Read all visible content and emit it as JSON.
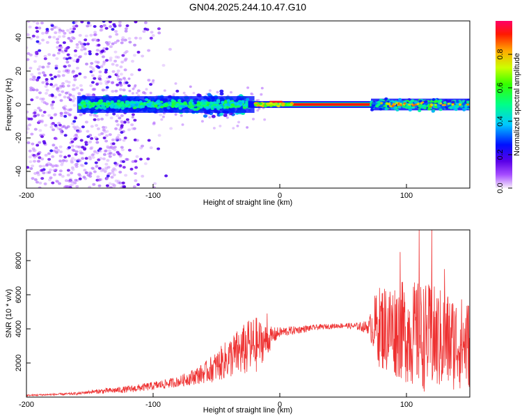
{
  "title": "GN04.2025.244.10.47.G10",
  "colors": {
    "snr_line": "#ee3030",
    "frame": "#000000",
    "background": "#ffffff"
  },
  "chart_data": [
    {
      "type": "heatmap",
      "title": "GN04.2025.244.10.47.G10",
      "xlabel": "Height of straight line (km)",
      "ylabel": "Frequency (Hz)",
      "xlim": [
        -200,
        150
      ],
      "ylim": [
        -50,
        50
      ],
      "xticks": [
        -200,
        -100,
        0,
        100
      ],
      "yticks": [
        -40,
        -20,
        0,
        20,
        40
      ],
      "colorbar": {
        "label": "Normalized spectral amplitude",
        "range": [
          0,
          1
        ],
        "ticks": [
          "0.0",
          "0.2",
          "0.4",
          "0.6",
          "0.8"
        ],
        "colormap": "rainbow (purple to red/magenta)"
      },
      "description_regions": [
        {
          "x_range": [
            -200,
            -160
          ],
          "freq_spread": 50,
          "amplitude": "low"
        },
        {
          "x_range": [
            -160,
            -30
          ],
          "freq_spread": 8,
          "amplitude": "medium"
        },
        {
          "x_range": [
            -20,
            75
          ],
          "freq_spread": 2,
          "amplitude": "high"
        },
        {
          "x_range": [
            75,
            150
          ],
          "freq_spread": 6,
          "amplitude": "medium"
        }
      ]
    },
    {
      "type": "line",
      "xlabel": "Height of straight line (km)",
      "ylabel": "SNR (10 * v/v)",
      "xlim": [
        -200,
        150
      ],
      "ylim": [
        0,
        9800
      ],
      "xticks": [
        -200,
        -100,
        0,
        100
      ],
      "yticks": [
        2000,
        4000,
        6000,
        8000
      ],
      "series": [
        {
          "name": "SNR",
          "x": [
            -200,
            -180,
            -160,
            -150,
            -140,
            -120,
            -100,
            -80,
            -60,
            -50,
            -40,
            -30,
            -20,
            -15,
            -10,
            -5,
            0,
            10,
            20,
            30,
            40,
            50,
            60,
            70,
            75,
            80,
            90,
            100,
            110,
            120,
            130,
            140,
            150
          ],
          "values": [
            100,
            150,
            200,
            300,
            350,
            450,
            650,
            900,
            1400,
            1800,
            2300,
            2700,
            3000,
            3200,
            3300,
            3600,
            3800,
            3900,
            4000,
            4100,
            4150,
            4200,
            4150,
            4100,
            4200,
            4100,
            4000,
            3800,
            3600,
            3400,
            3300,
            3200,
            3100
          ],
          "noise_amplitude": [
            40,
            60,
            80,
            100,
            150,
            200,
            250,
            300,
            600,
            900,
            1200,
            1500,
            1800,
            1300,
            900,
            500,
            300,
            250,
            200,
            150,
            150,
            150,
            200,
            400,
            1800,
            2600,
            2800,
            3000,
            3200,
            3200,
            3000,
            2800,
            2600
          ],
          "peaks": [
            {
              "x": -10,
              "y": 4900
            },
            {
              "x": -25,
              "y": 3900
            },
            {
              "x": 95,
              "y": 8500
            },
            {
              "x": 110,
              "y": 9800
            },
            {
              "x": 120,
              "y": 9800
            },
            {
              "x": 130,
              "y": 7500
            }
          ]
        }
      ]
    }
  ]
}
